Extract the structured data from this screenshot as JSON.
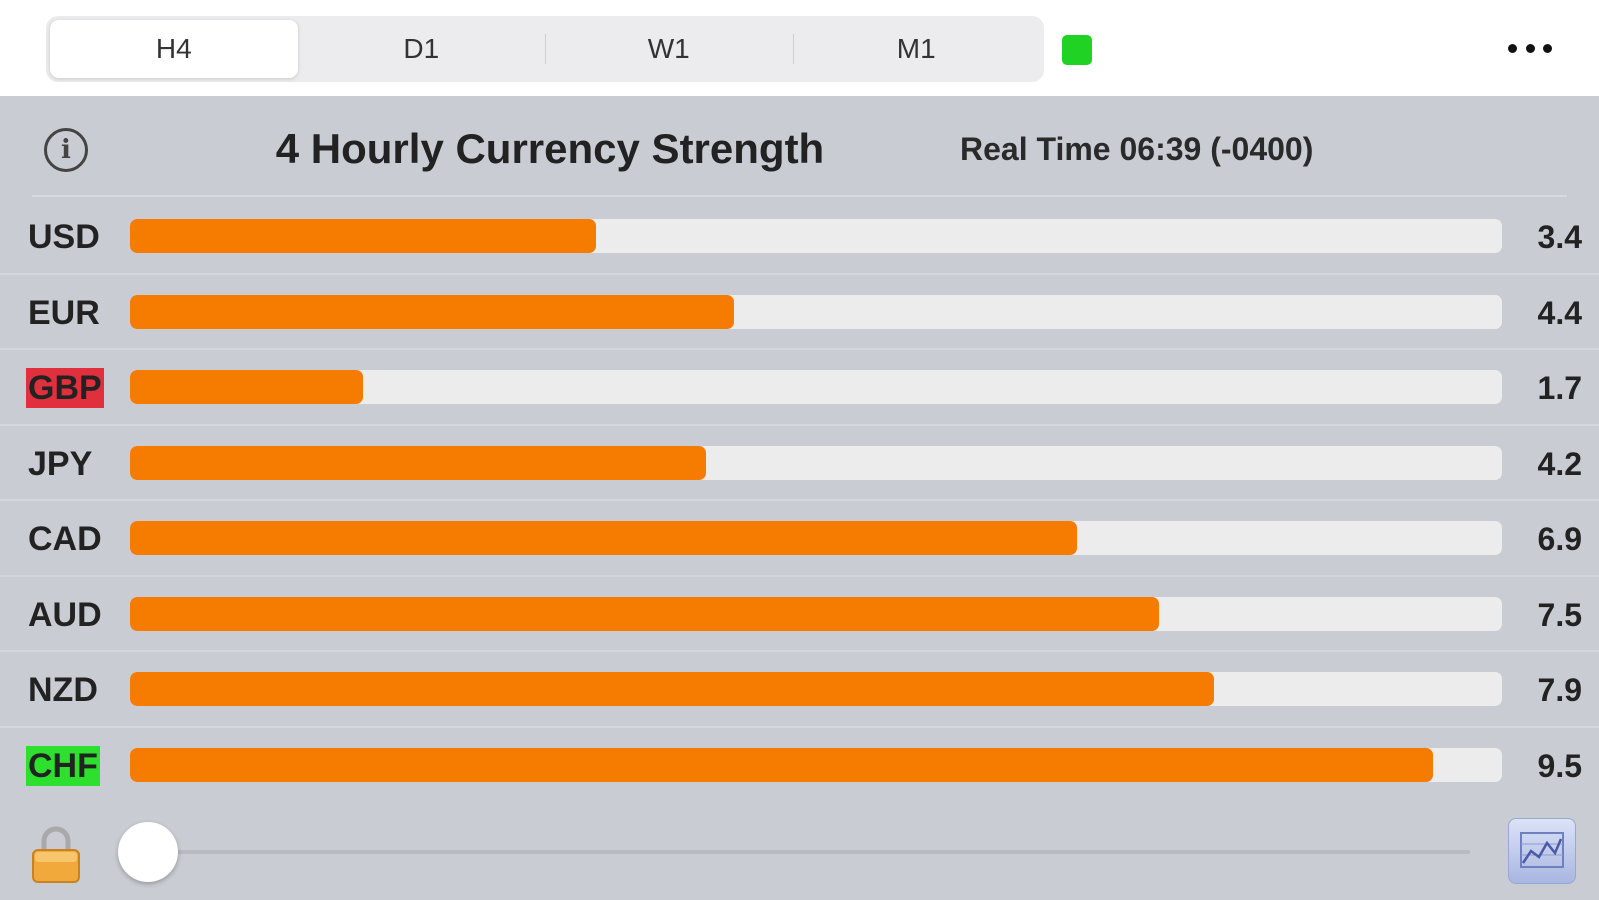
{
  "tabs": [
    {
      "label": "H4",
      "active": true
    },
    {
      "label": "D1",
      "active": false
    },
    {
      "label": "W1",
      "active": false
    },
    {
      "label": "M1",
      "active": false
    }
  ],
  "status_color": "#1fd224",
  "header": {
    "title": "4 Hourly Currency Strength",
    "realtime": "Real Time 06:39 (-0400)"
  },
  "scale_max": 10,
  "currencies": [
    {
      "code": "USD",
      "value": "3.4",
      "fraction": 0.34,
      "highlight": null
    },
    {
      "code": "EUR",
      "value": "4.4",
      "fraction": 0.44,
      "highlight": null
    },
    {
      "code": "GBP",
      "value": "1.7",
      "fraction": 0.17,
      "highlight": "#e0303d"
    },
    {
      "code": "JPY",
      "value": "4.2",
      "fraction": 0.42,
      "highlight": null
    },
    {
      "code": "CAD",
      "value": "6.9",
      "fraction": 0.69,
      "highlight": null
    },
    {
      "code": "AUD",
      "value": "7.5",
      "fraction": 0.75,
      "highlight": null
    },
    {
      "code": "NZD",
      "value": "7.9",
      "fraction": 0.79,
      "highlight": null
    },
    {
      "code": "CHF",
      "value": "9.5",
      "fraction": 0.95,
      "highlight": "#2ee02e"
    }
  ],
  "bar_color": "#f57c00",
  "slider": {
    "value_fraction": 0.0
  },
  "icons": {
    "info": "info-icon",
    "more": "more-icon",
    "lock": "lock-icon",
    "chart": "chart-icon"
  }
}
